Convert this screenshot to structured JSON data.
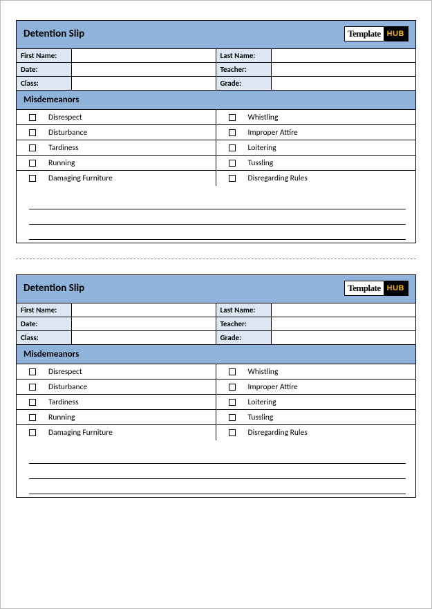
{
  "colors": {
    "header_bg": "#8fb3da",
    "label_bg": "#dce7f3",
    "border": "#000000",
    "logo_accent_bg": "#000000",
    "logo_accent_fg": "#f5b800"
  },
  "logo": {
    "left": "Template",
    "right": "HUB"
  },
  "slip": {
    "title": "Detention Slip",
    "fields": {
      "r0c0": "First Name:",
      "r0c1": "Last Name:",
      "r1c0": "Date:",
      "r1c1": "Teacher:",
      "r2c0": "Class:",
      "r2c1": "Grade:"
    },
    "section_label": "Misdemeanors",
    "misdemeanors_left": [
      "Disrespect",
      "Disturbance",
      "Tardiness",
      "Running",
      "Damaging Furniture"
    ],
    "misdemeanors_right": [
      "Whistling",
      "Improper Attire",
      "Loitering",
      "Tussling",
      "Disregarding Rules"
    ],
    "blank_lines": 3
  }
}
